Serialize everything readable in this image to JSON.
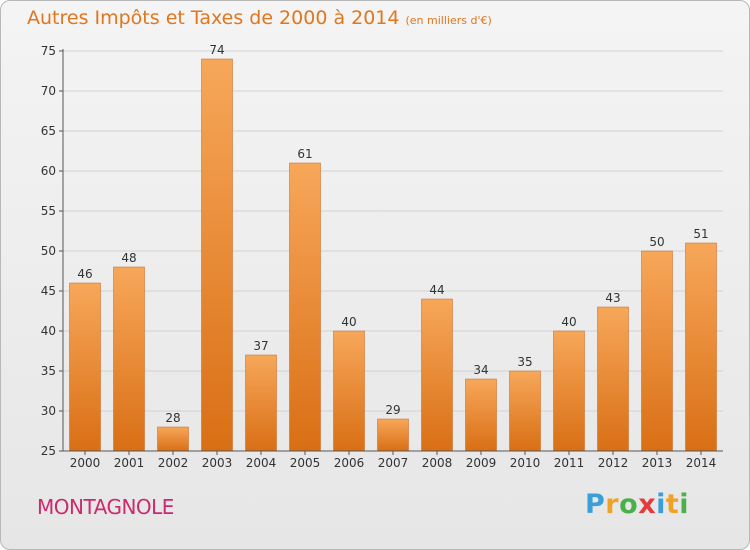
{
  "title": "Autres Impôts et Taxes de 2000 à 2014",
  "subtitle": "(en milliers d'€)",
  "commune": "MONTAGNOLE",
  "logo": {
    "text": "Proxiti",
    "letters": [
      {
        "ch": "P",
        "color": "#3a9fd8"
      },
      {
        "ch": "r",
        "color": "#f0a224"
      },
      {
        "ch": "o",
        "color": "#49b04a"
      },
      {
        "ch": "x",
        "color": "#e33b3b"
      },
      {
        "ch": "i",
        "color": "#3a9fd8"
      },
      {
        "ch": "t",
        "color": "#f0a224"
      },
      {
        "ch": "i",
        "color": "#49b04a"
      }
    ]
  },
  "colors": {
    "bar_top": "#f7a75a",
    "bar_bottom": "#d96f15",
    "title": "#e0761e",
    "commune": "#cc2a6e",
    "axis": "#555555",
    "grid": "#d2d2d2"
  },
  "chart_data": {
    "type": "bar",
    "categories": [
      "2000",
      "2001",
      "2002",
      "2003",
      "2004",
      "2005",
      "2006",
      "2007",
      "2008",
      "2009",
      "2010",
      "2011",
      "2012",
      "2013",
      "2014"
    ],
    "values": [
      46,
      48,
      28,
      74,
      37,
      61,
      40,
      29,
      44,
      34,
      35,
      40,
      43,
      50,
      51
    ],
    "ylim": [
      25,
      75
    ],
    "yticks": [
      25,
      30,
      35,
      40,
      45,
      50,
      55,
      60,
      65,
      70,
      75
    ],
    "grid": true,
    "xlabel": "",
    "ylabel": ""
  }
}
